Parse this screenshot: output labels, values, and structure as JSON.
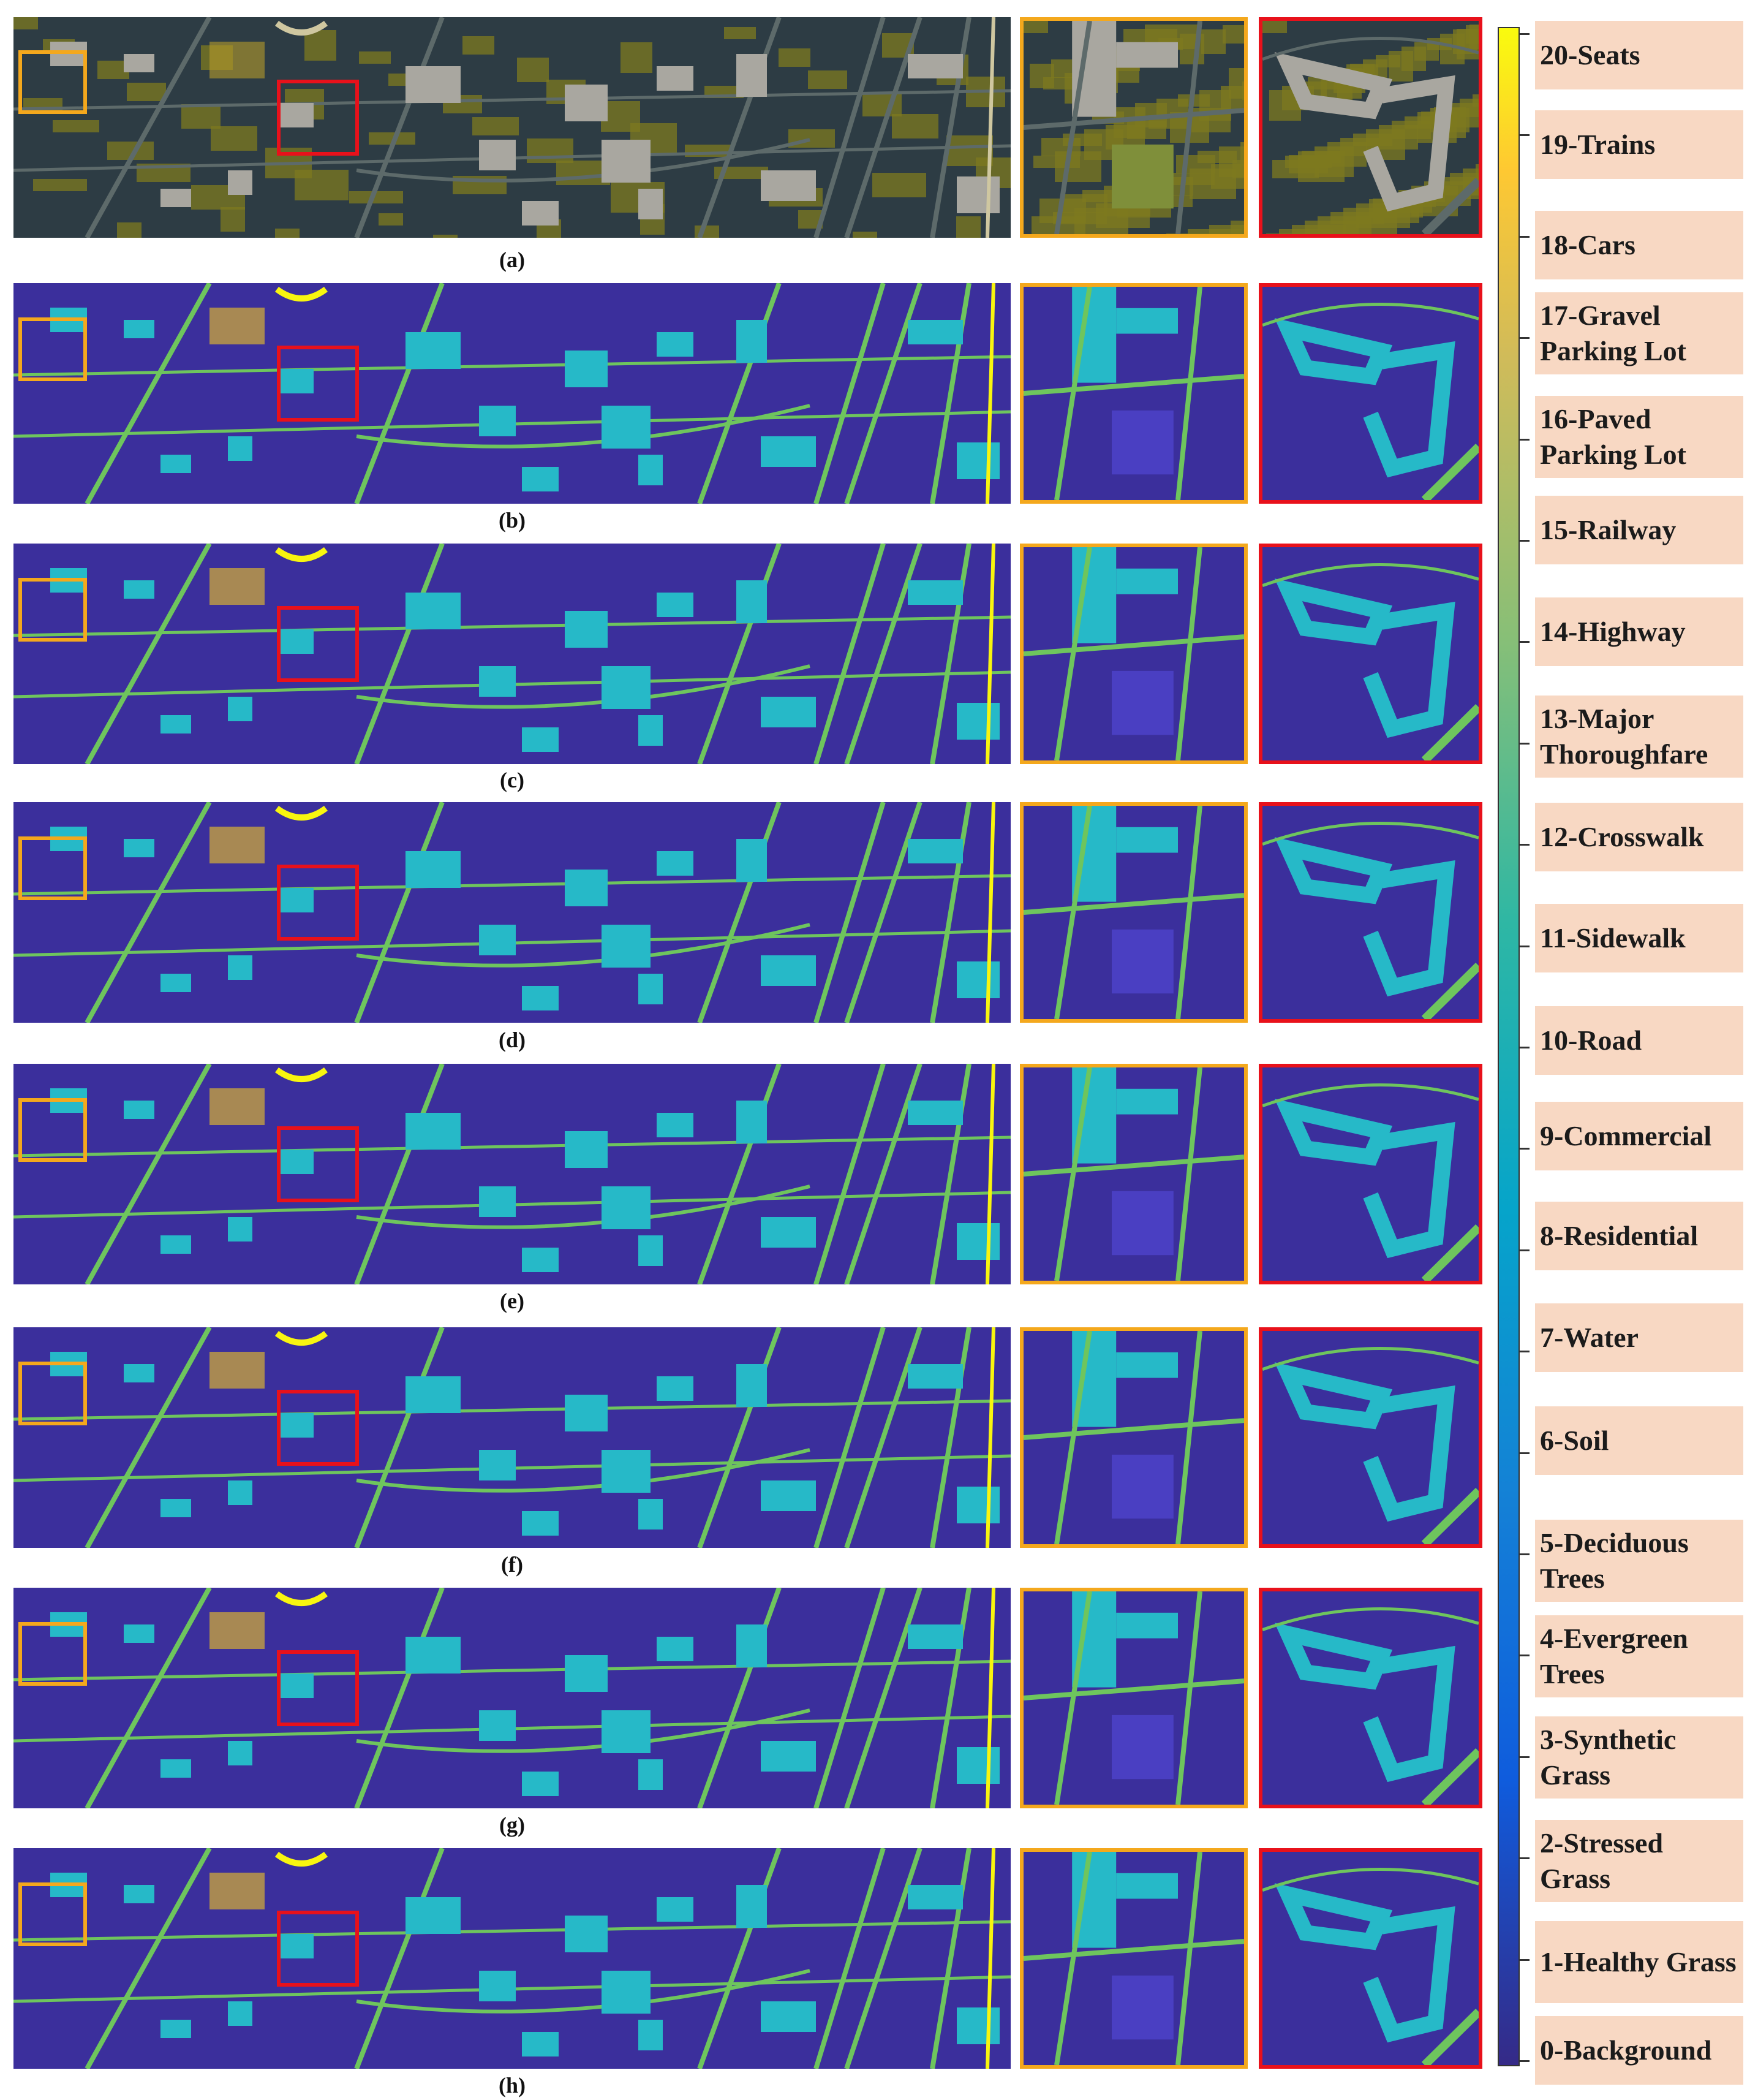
{
  "panels": [
    {
      "caption": "(a)",
      "kind": "rgb"
    },
    {
      "caption": "(b)",
      "kind": "map"
    },
    {
      "caption": "(c)",
      "kind": "map"
    },
    {
      "caption": "(d)",
      "kind": "map"
    },
    {
      "caption": "(e)",
      "kind": "map"
    },
    {
      "caption": "(f)",
      "kind": "map"
    },
    {
      "caption": "(g)",
      "kind": "map"
    },
    {
      "caption": "(h)",
      "kind": "map"
    }
  ],
  "legend": [
    "20-Seats",
    "19-Trains",
    "18-Cars",
    "17-Gravel Parking Lot",
    "16-Paved Parking Lot",
    "15-Railway",
    "14-Highway",
    "13-Major Thoroughfare",
    "12-Crosswalk",
    "11-Sidewalk",
    "10-Road",
    "9-Commercial",
    "8-Residential",
    "7-Water",
    "6-Soil",
    "5-Deciduous Trees",
    "4-Evergreen Trees",
    "3-Synthetic Grass",
    "2-Stressed Grass",
    "1-Healthy Grass",
    "0-Background"
  ],
  "colors": {
    "zoom_box_orange": "#f4a81d",
    "zoom_box_red": "#e8111b",
    "background_class": "#3b2f9c",
    "building_class": "#26b9c8",
    "road_class": "#6ec55d",
    "car_class": "#f2c623",
    "seat_class": "#f8f50f"
  }
}
